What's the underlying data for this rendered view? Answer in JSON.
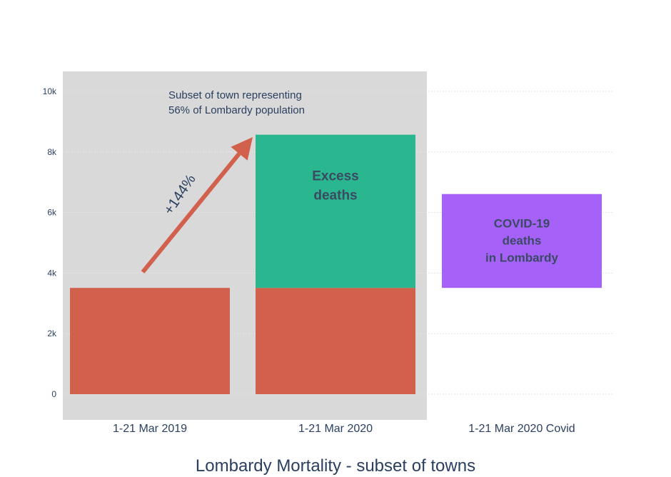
{
  "chart_data": {
    "type": "bar",
    "title": "Lombardy Mortality - subset of towns",
    "xlabel": "",
    "ylabel": "",
    "categories": [
      "1-21 Mar 2019",
      "1-21 Mar 2020",
      "1-21 Mar 2020 Covid"
    ],
    "ylim": [
      0,
      10500
    ],
    "yticks": [
      {
        "value": 0,
        "label": "0"
      },
      {
        "value": 2000,
        "label": "2k"
      },
      {
        "value": 4000,
        "label": "4k"
      },
      {
        "value": 6000,
        "label": "6k"
      },
      {
        "value": 8000,
        "label": "8k"
      },
      {
        "value": 10000,
        "label": "10k"
      }
    ],
    "grid": true,
    "legend": "none",
    "bars": [
      {
        "category": "1-21 Mar 2019",
        "base": 0,
        "value": 3510,
        "color": "#d1604d"
      },
      {
        "category": "1-21 Mar 2020",
        "base": 0,
        "value": 3510,
        "color": "#d1604d"
      },
      {
        "category": "1-21 Mar 2020",
        "base": 3510,
        "value": 5060,
        "color": "#2ab68e",
        "label": "Excess\ndeaths"
      },
      {
        "category": "1-21 Mar 2020 Covid",
        "base": 3510,
        "value": 3100,
        "color": "#a561f8",
        "label": "COVID-19\ndeaths\nin Lombardy"
      }
    ],
    "annotations": {
      "subset_note": [
        "Subset of town representing",
        "56% of Lombardy population"
      ],
      "arrow_label": "+144%"
    },
    "colors": {
      "shaded_region": "#d9d9d9",
      "arrow": "#d1604d",
      "text": "#2a3f5f",
      "bar_label": "#3b4a63",
      "grid": "#e4e4e4"
    }
  }
}
